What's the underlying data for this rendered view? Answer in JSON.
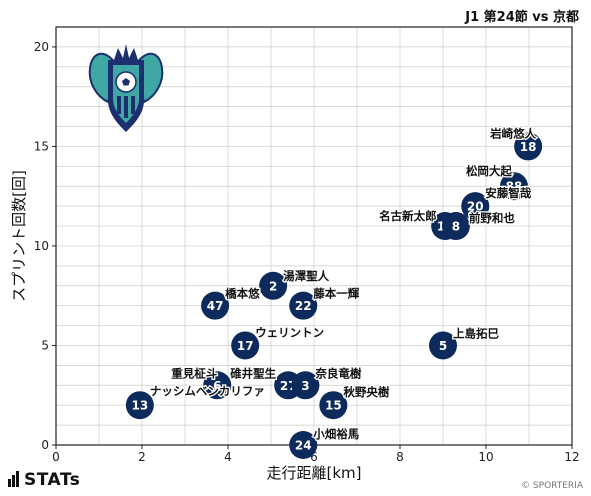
{
  "header": {
    "title": "J1 第24節 vs 京都"
  },
  "footer": {
    "brand": "STATs",
    "copyright": "© SPORTERIA"
  },
  "colors": {
    "marker": "#0d2a5c",
    "marker_text": "#ffffff",
    "grid": "#cccccc",
    "crest_teal": "#3fa7a4",
    "crest_navy": "#1c2f6e"
  },
  "chart_data": {
    "type": "scatter",
    "xlabel": "走行距離[km]",
    "ylabel": "スプリント回数[回]",
    "xlim": [
      0,
      12
    ],
    "ylim": [
      0,
      21
    ],
    "xticks": [
      0,
      2,
      4,
      6,
      8,
      10,
      12
    ],
    "yticks": [
      0,
      5,
      10,
      15,
      20
    ],
    "grid": true,
    "points": [
      {
        "number": "18",
        "name": "岩崎悠人",
        "x": 10.98,
        "y": 15
      },
      {
        "number": "88",
        "name": "松岡大起",
        "x": 10.65,
        "y": 13
      },
      {
        "number": "20",
        "name": "安藤智哉",
        "x": 9.75,
        "y": 12
      },
      {
        "number": "14",
        "name": "名古新太郎",
        "x": 9.05,
        "y": 11
      },
      {
        "number": "8",
        "name": "前野和也",
        "x": 9.3,
        "y": 11
      },
      {
        "number": "2",
        "name": "湯澤聖人",
        "x": 5.05,
        "y": 8
      },
      {
        "number": "47",
        "name": "橋本悠",
        "x": 3.7,
        "y": 7
      },
      {
        "number": "22",
        "name": "藤本一輝",
        "x": 5.75,
        "y": 7
      },
      {
        "number": "17",
        "name": "ウェリントン",
        "x": 4.4,
        "y": 5
      },
      {
        "number": "5",
        "name": "上島拓巳",
        "x": 9.0,
        "y": 5
      },
      {
        "number": "6",
        "name": "重見柾斗",
        "x": 3.75,
        "y": 3
      },
      {
        "number": "27",
        "name": "碓井聖生",
        "x": 5.4,
        "y": 3
      },
      {
        "number": "3",
        "name": "奈良竜樹",
        "x": 5.8,
        "y": 3
      },
      {
        "number": "13",
        "name": "ナッシムベンカリファ",
        "x": 1.95,
        "y": 2
      },
      {
        "number": "15",
        "name": "秋野央樹",
        "x": 6.45,
        "y": 2
      },
      {
        "number": "24",
        "name": "小畑裕馬",
        "x": 5.75,
        "y": 0
      }
    ]
  }
}
